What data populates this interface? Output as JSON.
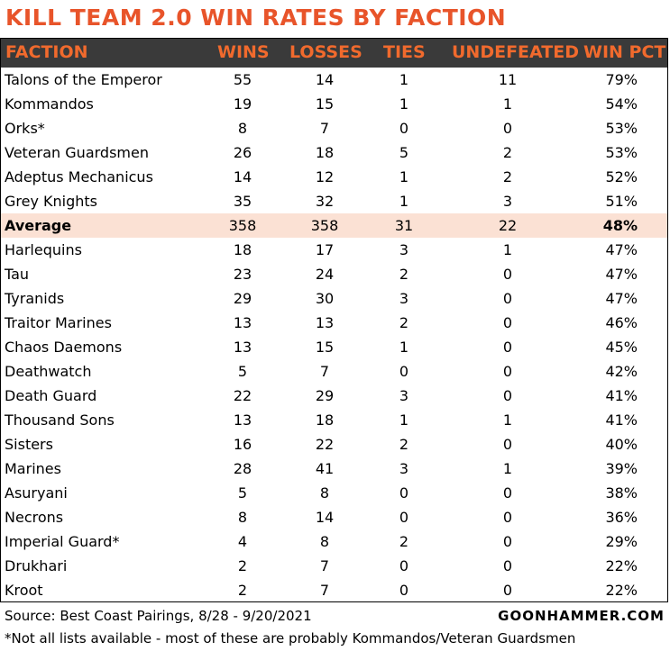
{
  "chart_data": {
    "type": "table",
    "title": "KILL TEAM 2.0 WIN RATES BY FACTION",
    "columns": [
      "FACTION",
      "WINS",
      "LOSSES",
      "TIES",
      "UNDEFEATED",
      "WIN PCT"
    ],
    "rows": [
      {
        "faction": "Talons of the Emperor",
        "wins": "55",
        "losses": "14",
        "ties": "1",
        "undefeated": "11",
        "win_pct": "79%"
      },
      {
        "faction": "Kommandos",
        "wins": "19",
        "losses": "15",
        "ties": "1",
        "undefeated": "1",
        "win_pct": "54%"
      },
      {
        "faction": "Orks*",
        "wins": "8",
        "losses": "7",
        "ties": "0",
        "undefeated": "0",
        "win_pct": "53%"
      },
      {
        "faction": "Veteran Guardsmen",
        "wins": "26",
        "losses": "18",
        "ties": "5",
        "undefeated": "2",
        "win_pct": "53%"
      },
      {
        "faction": "Adeptus Mechanicus",
        "wins": "14",
        "losses": "12",
        "ties": "1",
        "undefeated": "2",
        "win_pct": "52%"
      },
      {
        "faction": "Grey Knights",
        "wins": "35",
        "losses": "32",
        "ties": "1",
        "undefeated": "3",
        "win_pct": "51%"
      },
      {
        "faction": "Average",
        "wins": "358",
        "losses": "358",
        "ties": "31",
        "undefeated": "22",
        "win_pct": "48%",
        "highlight": true
      },
      {
        "faction": "Harlequins",
        "wins": "18",
        "losses": "17",
        "ties": "3",
        "undefeated": "1",
        "win_pct": "47%"
      },
      {
        "faction": "Tau",
        "wins": "23",
        "losses": "24",
        "ties": "2",
        "undefeated": "0",
        "win_pct": "47%"
      },
      {
        "faction": "Tyranids",
        "wins": "29",
        "losses": "30",
        "ties": "3",
        "undefeated": "0",
        "win_pct": "47%"
      },
      {
        "faction": "Traitor Marines",
        "wins": "13",
        "losses": "13",
        "ties": "2",
        "undefeated": "0",
        "win_pct": "46%"
      },
      {
        "faction": "Chaos Daemons",
        "wins": "13",
        "losses": "15",
        "ties": "1",
        "undefeated": "0",
        "win_pct": "45%"
      },
      {
        "faction": "Deathwatch",
        "wins": "5",
        "losses": "7",
        "ties": "0",
        "undefeated": "0",
        "win_pct": "42%"
      },
      {
        "faction": "Death Guard",
        "wins": "22",
        "losses": "29",
        "ties": "3",
        "undefeated": "0",
        "win_pct": "41%"
      },
      {
        "faction": "Thousand Sons",
        "wins": "13",
        "losses": "18",
        "ties": "1",
        "undefeated": "1",
        "win_pct": "41%"
      },
      {
        "faction": "Sisters",
        "wins": "16",
        "losses": "22",
        "ties": "2",
        "undefeated": "0",
        "win_pct": "40%"
      },
      {
        "faction": "Marines",
        "wins": "28",
        "losses": "41",
        "ties": "3",
        "undefeated": "1",
        "win_pct": "39%"
      },
      {
        "faction": "Asuryani",
        "wins": "5",
        "losses": "8",
        "ties": "0",
        "undefeated": "0",
        "win_pct": "38%"
      },
      {
        "faction": "Necrons",
        "wins": "8",
        "losses": "14",
        "ties": "0",
        "undefeated": "0",
        "win_pct": "36%"
      },
      {
        "faction": "Imperial Guard*",
        "wins": "4",
        "losses": "8",
        "ties": "2",
        "undefeated": "0",
        "win_pct": "29%"
      },
      {
        "faction": "Drukhari",
        "wins": "2",
        "losses": "7",
        "ties": "0",
        "undefeated": "0",
        "win_pct": "22%"
      },
      {
        "faction": "Kroot",
        "wins": "2",
        "losses": "7",
        "ties": "0",
        "undefeated": "0",
        "win_pct": "22%"
      }
    ],
    "colors": {
      "title": "#e8542a",
      "header_bg": "#3a3a3a",
      "header_text": "#f16a2d",
      "highlight_bg": "#fbe1d4"
    }
  },
  "footer": {
    "source": "Source: Best Coast Pairings, 8/28 - 9/20/2021",
    "brand": "GOONHAMMER.COM",
    "note": "*Not all lists available - most of these are probably Kommandos/Veteran Guardsmen"
  }
}
